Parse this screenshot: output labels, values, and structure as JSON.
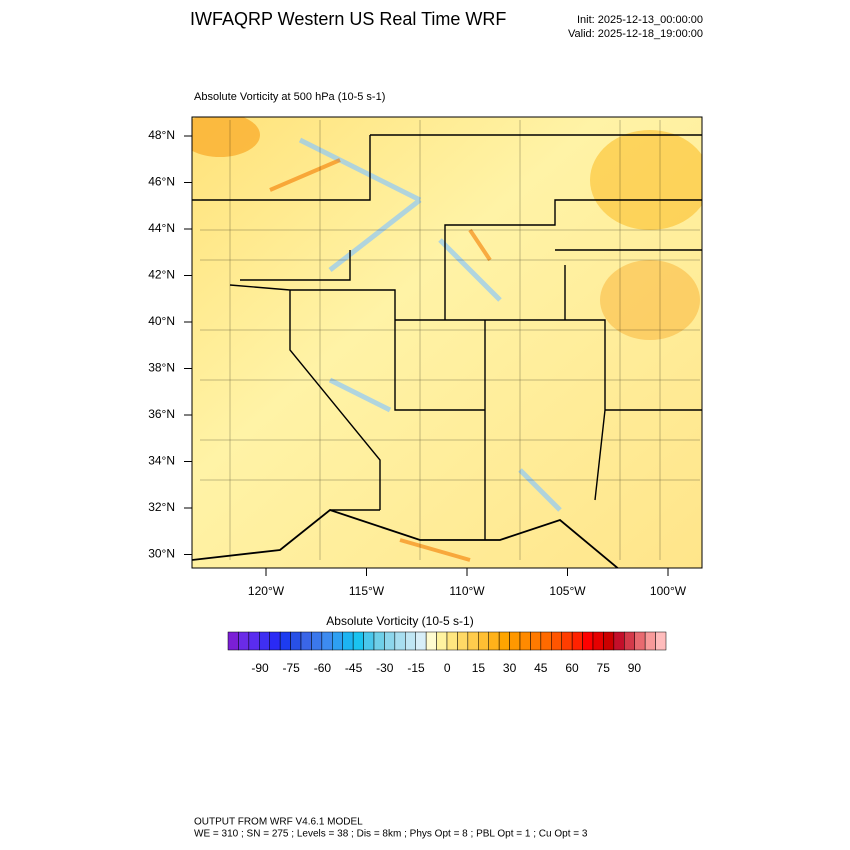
{
  "header": {
    "title": "IWFAQRP Western US Real Time WRF",
    "init": "Init: 2025-12-13_00:00:00",
    "valid": "Valid: 2025-12-18_19:00:00"
  },
  "map": {
    "subtitle": "Absolute Vorticity at 500 hPa   (10-5 s-1)",
    "lat_labels": [
      "48°N",
      "46°N",
      "44°N",
      "42°N",
      "40°N",
      "38°N",
      "36°N",
      "34°N",
      "32°N",
      "30°N"
    ],
    "lon_labels": [
      "120°W",
      "115°W",
      "110°W",
      "105°W",
      "100°W"
    ]
  },
  "colorbar": {
    "title": "Absolute Vorticity  (10-5 s-1)",
    "labels": [
      -90,
      -75,
      -60,
      -45,
      -30,
      -15,
      0,
      15,
      30,
      45,
      60,
      75,
      90
    ]
  },
  "footer": {
    "line1": "OUTPUT FROM WRF V4.6.1 MODEL",
    "line2": "WE = 310 ; SN = 275 ; Levels = 38 ; Dis = 8km ; Phys Opt = 8 ; PBL Opt = 1 ; Cu Opt = 3"
  }
}
